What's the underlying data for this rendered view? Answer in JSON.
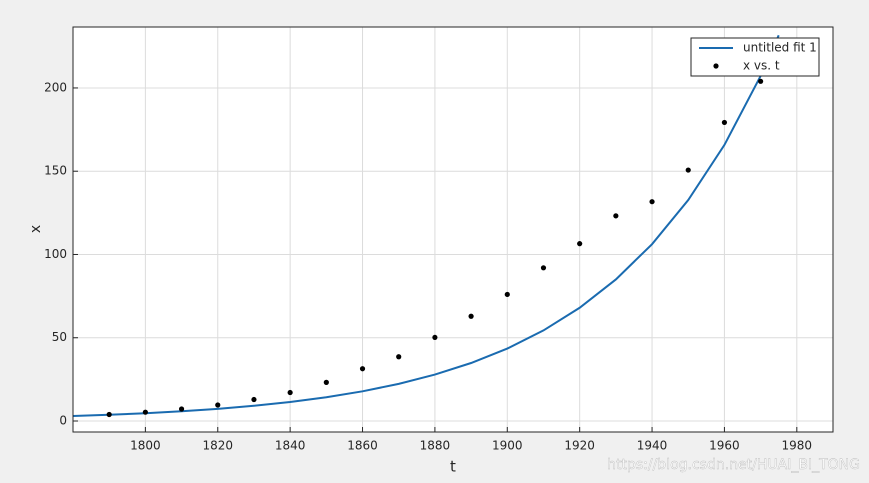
{
  "chart_data": {
    "type": "scatter",
    "xlabel": "t",
    "ylabel": "x",
    "xlim": [
      1780,
      1990
    ],
    "ylim": [
      -6.6,
      236.6
    ],
    "xticks": [
      1800,
      1820,
      1840,
      1860,
      1880,
      1900,
      1920,
      1940,
      1960,
      1980
    ],
    "yticks": [
      0,
      50,
      100,
      150,
      200
    ],
    "grid": true,
    "legend": "top-right",
    "series": [
      {
        "name": "untitled fit 1",
        "type": "line",
        "color": "#1a6bb0",
        "x": [
          1780,
          1790,
          1800,
          1810,
          1820,
          1830,
          1840,
          1850,
          1860,
          1870,
          1880,
          1890,
          1900,
          1910,
          1920,
          1930,
          1940,
          1950,
          1960,
          1970,
          1975
        ],
        "values": [
          3.0,
          3.75,
          4.68,
          5.85,
          7.31,
          9.14,
          11.42,
          14.28,
          17.84,
          22.3,
          27.87,
          34.83,
          43.5,
          54.4,
          68.0,
          85.0,
          106.2,
          132.7,
          165.8,
          207.2,
          231.6
        ]
      },
      {
        "name": "x vs. t",
        "type": "scatter",
        "color": "#000000",
        "x": [
          1790,
          1800,
          1810,
          1820,
          1830,
          1840,
          1850,
          1860,
          1870,
          1880,
          1890,
          1900,
          1910,
          1920,
          1930,
          1940,
          1950,
          1960,
          1970
        ],
        "values": [
          3.9,
          5.3,
          7.2,
          9.6,
          12.9,
          17.1,
          23.2,
          31.4,
          38.6,
          50.2,
          62.9,
          76.0,
          92.0,
          106.5,
          123.2,
          131.7,
          150.7,
          179.3,
          204.0
        ]
      }
    ]
  },
  "watermark": "https://blog.csdn.net/HUAI_BI_TONG"
}
